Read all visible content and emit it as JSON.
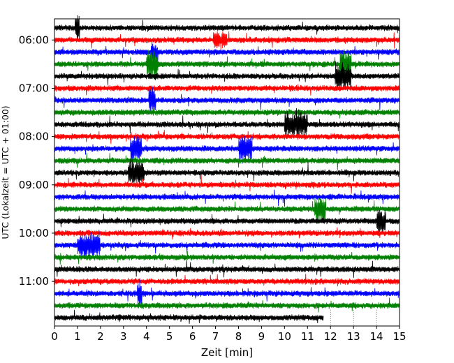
{
  "chart_data": {
    "type": "line",
    "subtype": "helicorder",
    "title": "",
    "xlabel": "Zeit  [min]",
    "ylabel": "UTC (Lokalzeit = UTC + 01:00)",
    "xlim": [
      0,
      15
    ],
    "x_ticks": [
      "0",
      "1",
      "2",
      "3",
      "4",
      "5",
      "6",
      "7",
      "8",
      "9",
      "10",
      "11",
      "12",
      "13",
      "14",
      "15"
    ],
    "y_ticks": [
      "06:00",
      "07:00",
      "08:00",
      "09:00",
      "10:00",
      "11:00"
    ],
    "time_start": "05:45",
    "time_end": "11:45",
    "line_interval_min": 15,
    "trace_colors": [
      "#000000",
      "#ff0000",
      "#0000ff",
      "#008000"
    ],
    "last_trace_end_min": 11.7,
    "grid": "vertical dotted lines after last trace end",
    "events": [
      {
        "time": "05:45",
        "start_min": 0.9,
        "end_min": 1.1,
        "amplitude": "high"
      },
      {
        "time": "06:00",
        "start_min": 6.9,
        "end_min": 7.5,
        "amplitude": "medium"
      },
      {
        "time": "06:15",
        "start_min": 4.2,
        "end_min": 4.5,
        "amplitude": "medium"
      },
      {
        "time": "06:30",
        "start_min": 4.0,
        "end_min": 4.5,
        "amplitude": "high"
      },
      {
        "time": "06:30",
        "start_min": 12.4,
        "end_min": 12.9,
        "amplitude": "high"
      },
      {
        "time": "06:45",
        "start_min": 12.2,
        "end_min": 12.9,
        "amplitude": "high"
      },
      {
        "time": "07:15",
        "start_min": 4.1,
        "end_min": 4.4,
        "amplitude": "high"
      },
      {
        "time": "07:45",
        "start_min": 10.0,
        "end_min": 11.0,
        "amplitude": "high"
      },
      {
        "time": "08:15",
        "start_min": 3.3,
        "end_min": 3.8,
        "amplitude": "high"
      },
      {
        "time": "08:15",
        "start_min": 8.0,
        "end_min": 8.6,
        "amplitude": "high"
      },
      {
        "time": "08:45",
        "start_min": 3.2,
        "end_min": 3.9,
        "amplitude": "high"
      },
      {
        "time": "09:30",
        "start_min": 11.3,
        "end_min": 11.8,
        "amplitude": "high"
      },
      {
        "time": "09:45",
        "start_min": 14.0,
        "end_min": 14.4,
        "amplitude": "high"
      },
      {
        "time": "10:15",
        "start_min": 1.0,
        "end_min": 2.0,
        "amplitude": "high"
      },
      {
        "time": "11:15",
        "start_min": 3.6,
        "end_min": 3.8,
        "amplitude": "high"
      }
    ]
  }
}
